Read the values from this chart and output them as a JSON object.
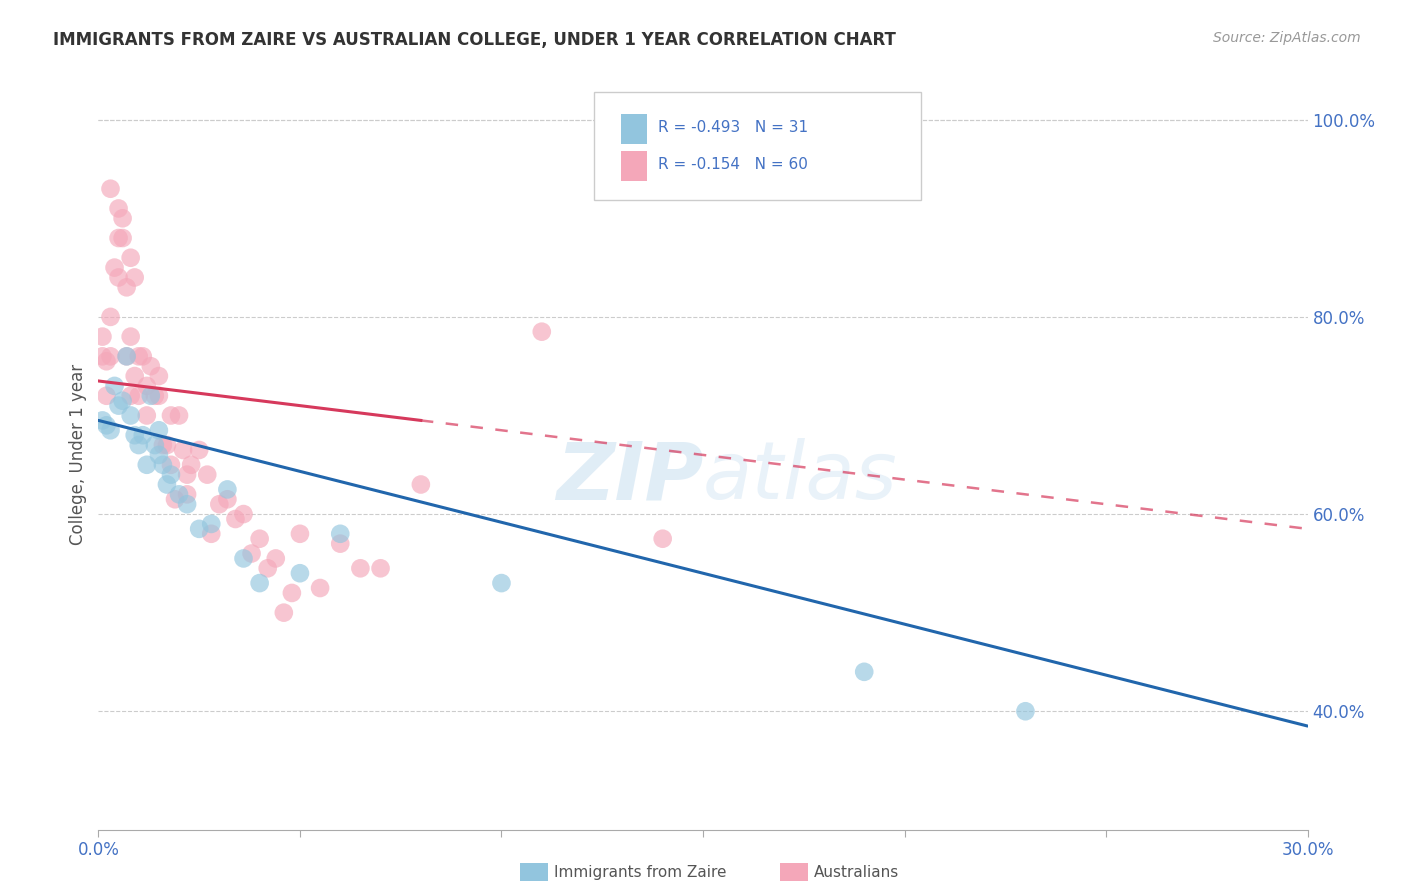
{
  "title": "IMMIGRANTS FROM ZAIRE VS AUSTRALIAN COLLEGE, UNDER 1 YEAR CORRELATION CHART",
  "source": "Source: ZipAtlas.com",
  "ylabel": "College, Under 1 year",
  "legend_label1": "Immigrants from Zaire",
  "legend_label2": "Australians",
  "R1": -0.493,
  "N1": 31,
  "R2": -0.154,
  "N2": 60,
  "xlim": [
    0.0,
    0.3
  ],
  "ylim": [
    0.28,
    1.04
  ],
  "xticks": [
    0.0,
    0.05,
    0.1,
    0.15,
    0.2,
    0.25,
    0.3
  ],
  "yticks_right": [
    1.0,
    0.8,
    0.6,
    0.4
  ],
  "color_blue": "#92c5de",
  "color_pink": "#f4a7b9",
  "color_blue_line": "#2166ac",
  "color_pink_line": "#d6395c",
  "watermark": "ZIPatlas",
  "blue_line_x0": 0.0,
  "blue_line_y0": 0.695,
  "blue_line_x1": 0.3,
  "blue_line_y1": 0.385,
  "pink_line_solid_x0": 0.0,
  "pink_line_solid_y0": 0.735,
  "pink_line_solid_x1": 0.08,
  "pink_line_solid_y1": 0.695,
  "pink_line_dash_x0": 0.08,
  "pink_line_dash_y0": 0.695,
  "pink_line_dash_x1": 0.3,
  "pink_line_dash_y1": 0.585,
  "blue_points_x": [
    0.001,
    0.002,
    0.003,
    0.004,
    0.005,
    0.006,
    0.007,
    0.008,
    0.009,
    0.01,
    0.011,
    0.012,
    0.013,
    0.014,
    0.015,
    0.016,
    0.017,
    0.018,
    0.02,
    0.022,
    0.025,
    0.028,
    0.032,
    0.036,
    0.04,
    0.05,
    0.06,
    0.1,
    0.19,
    0.23,
    0.015
  ],
  "blue_points_y": [
    0.695,
    0.69,
    0.685,
    0.73,
    0.71,
    0.715,
    0.76,
    0.7,
    0.68,
    0.67,
    0.68,
    0.65,
    0.72,
    0.67,
    0.66,
    0.65,
    0.63,
    0.64,
    0.62,
    0.61,
    0.585,
    0.59,
    0.625,
    0.555,
    0.53,
    0.54,
    0.58,
    0.53,
    0.44,
    0.4,
    0.685
  ],
  "pink_points_x": [
    0.001,
    0.001,
    0.002,
    0.002,
    0.003,
    0.003,
    0.004,
    0.005,
    0.005,
    0.006,
    0.007,
    0.007,
    0.008,
    0.008,
    0.009,
    0.009,
    0.01,
    0.011,
    0.012,
    0.013,
    0.014,
    0.015,
    0.016,
    0.017,
    0.018,
    0.019,
    0.02,
    0.021,
    0.022,
    0.023,
    0.025,
    0.027,
    0.03,
    0.032,
    0.034,
    0.036,
    0.038,
    0.04,
    0.042,
    0.044,
    0.046,
    0.048,
    0.05,
    0.055,
    0.06,
    0.065,
    0.07,
    0.08,
    0.11,
    0.14,
    0.003,
    0.005,
    0.006,
    0.008,
    0.01,
    0.012,
    0.015,
    0.018,
    0.022,
    0.028
  ],
  "pink_points_y": [
    0.76,
    0.78,
    0.755,
    0.72,
    0.8,
    0.76,
    0.85,
    0.91,
    0.84,
    0.88,
    0.83,
    0.76,
    0.86,
    0.78,
    0.84,
    0.74,
    0.76,
    0.76,
    0.73,
    0.75,
    0.72,
    0.74,
    0.67,
    0.67,
    0.7,
    0.615,
    0.7,
    0.665,
    0.64,
    0.65,
    0.665,
    0.64,
    0.61,
    0.615,
    0.595,
    0.6,
    0.56,
    0.575,
    0.545,
    0.555,
    0.5,
    0.52,
    0.58,
    0.525,
    0.57,
    0.545,
    0.545,
    0.63,
    0.785,
    0.575,
    0.93,
    0.88,
    0.9,
    0.72,
    0.72,
    0.7,
    0.72,
    0.65,
    0.62,
    0.58
  ]
}
